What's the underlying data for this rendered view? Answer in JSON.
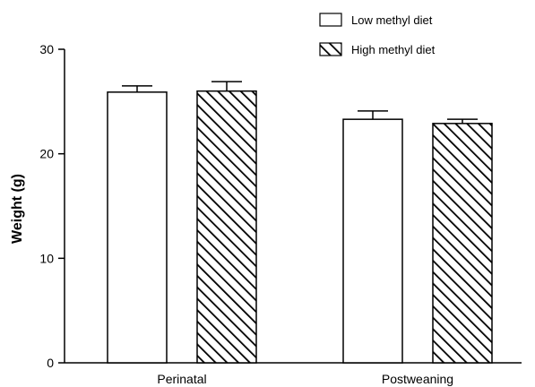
{
  "chart_data": {
    "type": "bar",
    "categories": [
      "Perinatal",
      "Postweaning"
    ],
    "series": [
      {
        "name": "Low methyl diet",
        "values": [
          25.9,
          23.3
        ],
        "errors": [
          0.6,
          0.8
        ],
        "fill": "#ffffff",
        "pattern": "none"
      },
      {
        "name": "High methyl diet",
        "values": [
          26.0,
          22.9
        ],
        "errors": [
          0.9,
          0.4
        ],
        "fill": "#ffffff",
        "pattern": "diagonal-hatch"
      }
    ],
    "ylabel": "Weight (g)",
    "xlabel": "",
    "ylim": [
      0,
      30
    ],
    "yticks": [
      0,
      10,
      20,
      30
    ],
    "legend_position": "top-right",
    "grid": false
  }
}
